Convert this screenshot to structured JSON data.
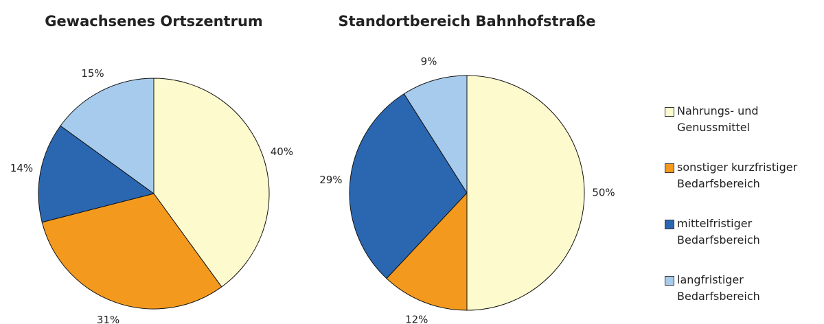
{
  "chart_data": [
    {
      "type": "pie",
      "title": "Gewachsenes Ortszentrum",
      "categories": [
        "Nahrungs- und Genussmittel",
        "sonstiger kurzfristiger Bedarfsbereich",
        "mittelfristiger Bedarfsbereich",
        "langfristiger Bedarfsbereich"
      ],
      "values": [
        40,
        31,
        14,
        15
      ],
      "value_labels": [
        "40%",
        "31%",
        "14%",
        "15%"
      ],
      "colors": [
        "#fdfacd",
        "#f39a1e",
        "#2b67b1",
        "#a7cbec"
      ]
    },
    {
      "type": "pie",
      "title": "Standortbereich Bahnhofstraße",
      "categories": [
        "Nahrungs- und Genussmittel",
        "sonstiger kurzfristiger Bedarfsbereich",
        "mittelfristiger Bedarfsbereich",
        "langfristiger Bedarfsbereich"
      ],
      "values": [
        50,
        12,
        29,
        9
      ],
      "value_labels": [
        "50%",
        "12%",
        "29%",
        "9%"
      ],
      "colors": [
        "#fdfacd",
        "#f39a1e",
        "#2b67b1",
        "#a7cbec"
      ]
    }
  ]
}
